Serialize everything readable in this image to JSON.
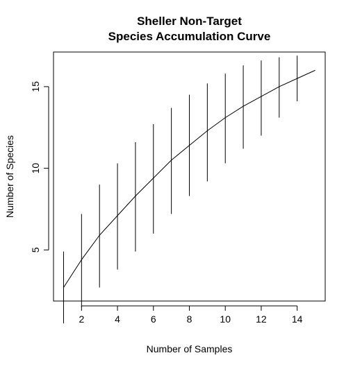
{
  "chart_data": {
    "type": "line",
    "title": "Sheller Non-Target\nSpecies Accumulation Curve",
    "title_lines": [
      "Sheller Non-Target",
      "Species Accumulation Curve"
    ],
    "xlabel": "Number of Samples",
    "ylabel": "Number of Species",
    "xlim": [
      0.44,
      15.56
    ],
    "ylim": [
      1.87,
      17.12
    ],
    "x_ticks": [
      2,
      4,
      6,
      8,
      10,
      12,
      14
    ],
    "y_ticks": [
      5,
      10,
      15
    ],
    "x": [
      1,
      2,
      3,
      4,
      5,
      6,
      7,
      8,
      9,
      10,
      11,
      12,
      13,
      14,
      15
    ],
    "series": [
      {
        "values": [
          2.7,
          4.4,
          5.9,
          7.1,
          8.3,
          9.4,
          10.5,
          11.4,
          12.3,
          13.1,
          13.8,
          14.4,
          15.0,
          15.5,
          16.0
        ],
        "lower": [
          0.5,
          1.5,
          2.7,
          3.8,
          4.9,
          6.0,
          7.2,
          8.3,
          9.2,
          10.3,
          11.2,
          12.0,
          13.1,
          14.1
        ],
        "upper": [
          4.9,
          7.2,
          9.0,
          10.3,
          11.6,
          12.7,
          13.7,
          14.5,
          15.2,
          15.8,
          16.3,
          16.6,
          16.8,
          16.9
        ]
      }
    ],
    "grid": false,
    "legend": "none",
    "line_color": "#000000",
    "error_bar_color": "#000000"
  }
}
